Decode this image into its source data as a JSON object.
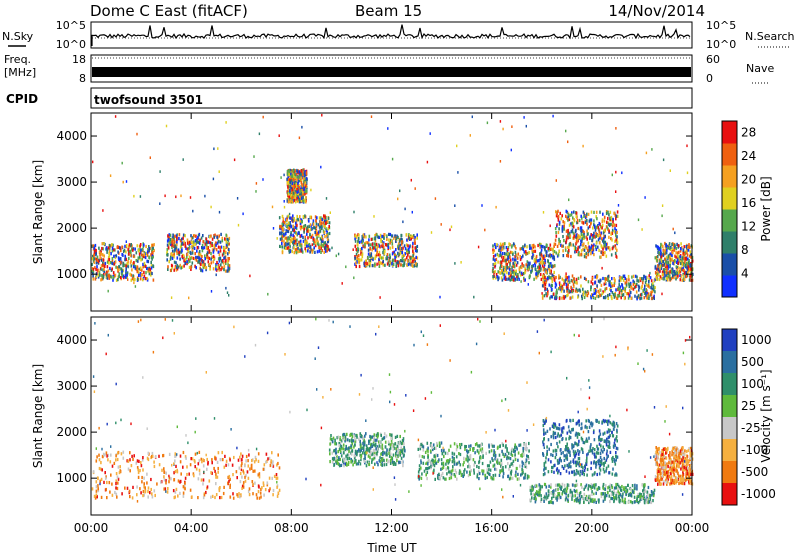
{
  "header": {
    "title": "Dome C East (fitACF)",
    "beam": "Beam 15",
    "date": "14/Nov/2014"
  },
  "side_labels": {
    "nsky": "N.Sky",
    "nsearch": "N.Search",
    "freq": "Freq.",
    "freq_unit": "[MHz]",
    "nave": "Nave",
    "cpid": "CPID"
  },
  "noise_panel": {
    "left_ticks": [
      "10^5",
      "10^0"
    ],
    "right_ticks": [
      "10^5",
      "10^0"
    ]
  },
  "freq_panel": {
    "left_ticks": [
      "18",
      "8"
    ],
    "right_ticks": [
      "60",
      "0"
    ]
  },
  "cpid_panel": {
    "label": "twofsound 3501"
  },
  "chart_data": [
    {
      "type": "heatmap",
      "name": "power",
      "ylabel": "Slant Range [km]",
      "xlabel": "",
      "x_ticks": [
        "00:00",
        "04:00",
        "08:00",
        "12:00",
        "16:00",
        "20:00",
        "00:00"
      ],
      "y_ticks": [
        1000,
        2000,
        3000,
        4000
      ],
      "ylim": [
        200,
        4500
      ],
      "x_range_hours": [
        0,
        24
      ],
      "colorbar": {
        "label": "Power [dB]",
        "ticks": [
          4,
          8,
          12,
          16,
          20,
          24,
          28
        ],
        "range": [
          0,
          30
        ],
        "colors": [
          "#1030ff",
          "#1a4fa8",
          "#2f7f6a",
          "#56a84c",
          "#e0d020",
          "#f5a020",
          "#ef6010",
          "#e81010"
        ]
      },
      "features": [
        {
          "x": [
            0.0,
            2.5
          ],
          "y": [
            900,
            1700
          ],
          "level": "12-20"
        },
        {
          "x": [
            3.0,
            5.5
          ],
          "y": [
            1100,
            1900
          ],
          "level": "8-16"
        },
        {
          "x": [
            7.5,
            9.5
          ],
          "y": [
            1500,
            2300
          ],
          "level": "12-24"
        },
        {
          "x": [
            10.5,
            13.0
          ],
          "y": [
            1200,
            1900
          ],
          "level": "16-28"
        },
        {
          "x": [
            16.0,
            18.5
          ],
          "y": [
            900,
            1700
          ],
          "level": "16-28"
        },
        {
          "x": [
            18.5,
            21.0
          ],
          "y": [
            1400,
            2400
          ],
          "level": "12-24"
        },
        {
          "x": [
            18.0,
            22.5
          ],
          "y": [
            500,
            1000
          ],
          "level": "16-28"
        },
        {
          "x": [
            22.5,
            24.0
          ],
          "y": [
            900,
            1700
          ],
          "level": "8-20"
        },
        {
          "x": [
            7.8,
            8.6
          ],
          "y": [
            2600,
            3300
          ],
          "level": "16-24"
        }
      ]
    },
    {
      "type": "heatmap",
      "name": "velocity",
      "ylabel": "Slant Range [km]",
      "xlabel": "Time UT",
      "x_ticks": [
        "00:00",
        "04:00",
        "08:00",
        "12:00",
        "16:00",
        "20:00",
        "00:00"
      ],
      "y_ticks": [
        1000,
        2000,
        3000,
        4000
      ],
      "ylim": [
        200,
        4500
      ],
      "x_range_hours": [
        0,
        24
      ],
      "colorbar": {
        "label": "Velocity [m s⁻¹]",
        "ticks": [
          1000,
          500,
          100,
          25,
          -25,
          -100,
          -500,
          -1000
        ],
        "colors": [
          "#2040c0",
          "#2a6fa0",
          "#2f8f6a",
          "#5fba3c",
          "#c8c8c8",
          "#f5b040",
          "#f07a10",
          "#e81010"
        ]
      },
      "features": [
        {
          "x": [
            0.0,
            7.5
          ],
          "y": [
            600,
            1600
          ],
          "level": "-25 to -500"
        },
        {
          "x": [
            9.5,
            12.5
          ],
          "y": [
            1300,
            2000
          ],
          "level": "25-500"
        },
        {
          "x": [
            13.0,
            17.5
          ],
          "y": [
            1000,
            1800
          ],
          "level": "100-500"
        },
        {
          "x": [
            18.0,
            21.0
          ],
          "y": [
            1100,
            2300
          ],
          "level": "500-1000"
        },
        {
          "x": [
            17.5,
            22.5
          ],
          "y": [
            500,
            900
          ],
          "level": "100-500"
        },
        {
          "x": [
            22.5,
            24.0
          ],
          "y": [
            900,
            1700
          ],
          "level": "-25 to -500"
        }
      ]
    }
  ]
}
